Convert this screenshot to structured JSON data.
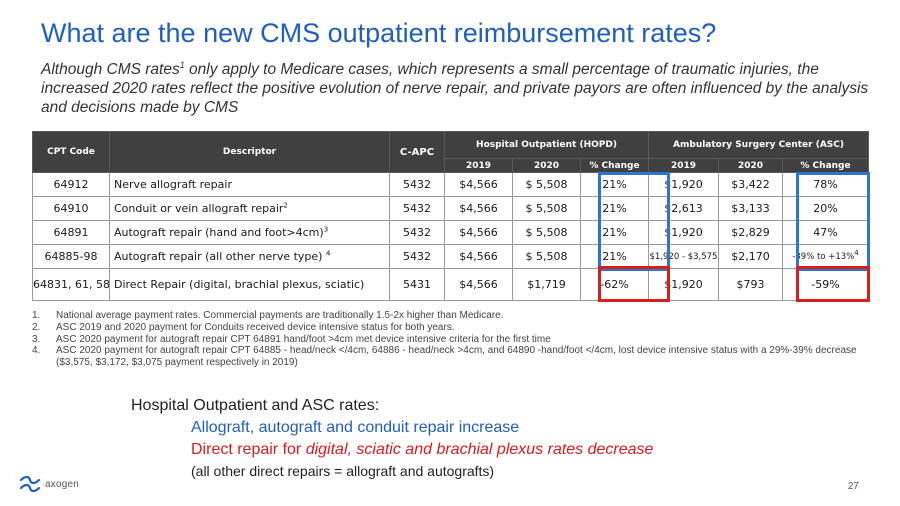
{
  "slide": {
    "title": "What are the new CMS outpatient reimbursement rates?",
    "subtitle_pre": "Although CMS rates",
    "subtitle_sup": "1",
    "subtitle_post": " only apply to Medicare cases, which represents a small percentage of traumatic injuries, the increased 2020 rates reflect the positive evolution of nerve repair, and private payors are often influenced by the analysis and decisions made by CMS",
    "page_number": "27"
  },
  "table": {
    "headers": {
      "cpt_code": "CPT Code",
      "descriptor": "Descriptor",
      "c_apc": "C-APC",
      "hopd_group": "Hospital Outpatient (HOPD)",
      "asc_group": "Ambulatory Surgery Center (ASC)",
      "year_2019": "2019",
      "year_2020": "2020",
      "pct_change": "% Change"
    },
    "rows": [
      {
        "cpt": "64912",
        "desc": "Nerve allograft repair",
        "desc_sup": "",
        "capc": "5432",
        "hopd_2019": "$4,566",
        "hopd_2020": "$ 5,508",
        "hopd_change": "21%",
        "asc_2019": "$1,920",
        "asc_2020": "$3,422",
        "asc_change": "78%"
      },
      {
        "cpt": "64910",
        "desc": "Conduit or vein allograft repair",
        "desc_sup": "2",
        "capc": "5432",
        "hopd_2019": "$4,566",
        "hopd_2020": "$ 5,508",
        "hopd_change": "21%",
        "asc_2019": "$2,613",
        "asc_2020": "$3,133",
        "asc_change": "20%"
      },
      {
        "cpt": "64891",
        "desc": "Autograft repair (hand and foot>4cm)",
        "desc_sup": "3",
        "capc": "5432",
        "hopd_2019": "$4,566",
        "hopd_2020": "$ 5,508",
        "hopd_change": "21%",
        "asc_2019": "$1,920",
        "asc_2020": "$2,829",
        "asc_change": "47%"
      },
      {
        "cpt": "64885-98",
        "desc": "Autograft repair (all other nerve type) ",
        "desc_sup": "4",
        "capc": "5432",
        "hopd_2019": "$4,566",
        "hopd_2020": "$ 5,508",
        "hopd_change": "21%",
        "asc_2019": "$1,920 - $3,575",
        "asc_2020": "$2,170",
        "asc_change": "-39% to +13%",
        "asc_change_sup": "4"
      },
      {
        "cpt": "64831, 61, 58",
        "desc": "Direct Repair (digital, brachial plexus, sciatic)",
        "desc_sup": "",
        "capc": "5431",
        "hopd_2019": "$4,566",
        "hopd_2020": "$1,719",
        "hopd_change": "-62%",
        "asc_2019": "$1,920",
        "asc_2020": "$793",
        "asc_change": "-59%"
      }
    ]
  },
  "footnotes": [
    {
      "num": "1.",
      "text": "National average payment rates.  Commercial payments are traditionally 1.5-2x higher than Medicare."
    },
    {
      "num": "2.",
      "text": "ASC 2019 and 2020 payment for Conduits received device intensive status for both years."
    },
    {
      "num": "3.",
      "text": "ASC 2020 payment for autograft repair CPT 64891 hand/foot >4cm met device intensive criteria for the first time"
    },
    {
      "num": "4.",
      "text": "ASC 2020 payment for autograft repair CPT 64885 - head/neck </4cm, 64886 - head/neck >4cm, and 64890 -hand/foot </4cm, lost device intensive status with a 29%-39% decrease ($3,575, $3,172, $3,075 payment respectively in 2019)"
    }
  ],
  "summary": {
    "heading": "Hospital Outpatient and ASC rates:",
    "line1": "Allograft, autograft and conduit repair increase",
    "line2_pre": "Direct repair for ",
    "line2_italic": "digital, sciatic and brachial plexus rates decrease",
    "line3": "(all other direct repairs = allograft and autografts)"
  },
  "logo": {
    "text": "axogen",
    "mark": "axogen-logo-mark",
    "color": "#1f5fbf"
  },
  "colors": {
    "title": "#1f5fbf",
    "header_bg": "#404040",
    "highlight_blue": "#2a76d2",
    "highlight_red": "#d91c1c"
  }
}
